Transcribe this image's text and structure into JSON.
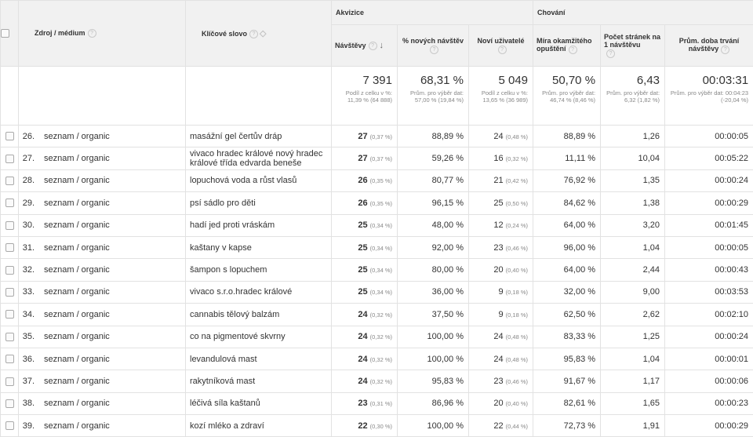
{
  "headers": {
    "source_medium": "Zdroj / médium",
    "keyword": "Klíčové slovo",
    "acquisition": "Akvizice",
    "behavior": "Chování",
    "visits": "Návštěvy",
    "new_visits_pct": "% nových návštěv",
    "new_users": "Noví uživatelé",
    "bounce_rate": "Míra okamžitého opuštění",
    "pages_per_visit": "Počet stránek na 1 návštěvu",
    "avg_duration": "Prům. doba trvání návštěvy",
    "help_glyph": "?"
  },
  "totals": {
    "visits": "7 391",
    "visits_sub": "Podíl z celku v %: 11,39 % (64 888)",
    "new_visits_pct": "68,31 %",
    "new_visits_pct_sub": "Prům. pro výběr dat: 57,00 % (19,84 %)",
    "new_users": "5 049",
    "new_users_sub": "Podíl z celku v %: 13,65 % (36 989)",
    "bounce_rate": "50,70 %",
    "bounce_rate_sub": "Prům. pro výběr dat: 46,74 % (8,46 %)",
    "pages_per_visit": "6,43",
    "pages_per_visit_sub": "Prům. pro výběr dat: 6,32 (1,82 %)",
    "avg_duration": "00:03:31",
    "avg_duration_sub": "Prům. pro výběr dat: 00:04:23 (-20,04 %)"
  },
  "rows": [
    {
      "idx": "26.",
      "source": "seznam / organic",
      "keyword": "masážní gel čertův dráp",
      "visits": "27",
      "visits_pct": "(0,37 %)",
      "new_visits_pct": "88,89 %",
      "new_users": "24",
      "new_users_pct": "(0,48 %)",
      "bounce": "88,89 %",
      "pages": "1,26",
      "duration": "00:00:05"
    },
    {
      "idx": "27.",
      "source": "seznam / organic",
      "keyword": "vivaco hradec králové nový hradec králové třída edvarda beneše",
      "visits": "27",
      "visits_pct": "(0,37 %)",
      "new_visits_pct": "59,26 %",
      "new_users": "16",
      "new_users_pct": "(0,32 %)",
      "bounce": "11,11 %",
      "pages": "10,04",
      "duration": "00:05:22"
    },
    {
      "idx": "28.",
      "source": "seznam / organic",
      "keyword": "lopuchová voda a růst vlasů",
      "visits": "26",
      "visits_pct": "(0,35 %)",
      "new_visits_pct": "80,77 %",
      "new_users": "21",
      "new_users_pct": "(0,42 %)",
      "bounce": "76,92 %",
      "pages": "1,35",
      "duration": "00:00:24"
    },
    {
      "idx": "29.",
      "source": "seznam / organic",
      "keyword": "psí sádlo pro děti",
      "visits": "26",
      "visits_pct": "(0,35 %)",
      "new_visits_pct": "96,15 %",
      "new_users": "25",
      "new_users_pct": "(0,50 %)",
      "bounce": "84,62 %",
      "pages": "1,38",
      "duration": "00:00:29"
    },
    {
      "idx": "30.",
      "source": "seznam / organic",
      "keyword": "hadí jed proti vráskám",
      "visits": "25",
      "visits_pct": "(0,34 %)",
      "new_visits_pct": "48,00 %",
      "new_users": "12",
      "new_users_pct": "(0,24 %)",
      "bounce": "64,00 %",
      "pages": "3,20",
      "duration": "00:01:45"
    },
    {
      "idx": "31.",
      "source": "seznam / organic",
      "keyword": "kaštany v kapse",
      "visits": "25",
      "visits_pct": "(0,34 %)",
      "new_visits_pct": "92,00 %",
      "new_users": "23",
      "new_users_pct": "(0,46 %)",
      "bounce": "96,00 %",
      "pages": "1,04",
      "duration": "00:00:05"
    },
    {
      "idx": "32.",
      "source": "seznam / organic",
      "keyword": "šampon s lopuchem",
      "visits": "25",
      "visits_pct": "(0,34 %)",
      "new_visits_pct": "80,00 %",
      "new_users": "20",
      "new_users_pct": "(0,40 %)",
      "bounce": "64,00 %",
      "pages": "2,44",
      "duration": "00:00:43"
    },
    {
      "idx": "33.",
      "source": "seznam / organic",
      "keyword": "vivaco s.r.o.hradec králové",
      "visits": "25",
      "visits_pct": "(0,34 %)",
      "new_visits_pct": "36,00 %",
      "new_users": "9",
      "new_users_pct": "(0,18 %)",
      "bounce": "32,00 %",
      "pages": "9,00",
      "duration": "00:03:53"
    },
    {
      "idx": "34.",
      "source": "seznam / organic",
      "keyword": "cannabis tělový balzám",
      "visits": "24",
      "visits_pct": "(0,32 %)",
      "new_visits_pct": "37,50 %",
      "new_users": "9",
      "new_users_pct": "(0,18 %)",
      "bounce": "62,50 %",
      "pages": "2,62",
      "duration": "00:02:10"
    },
    {
      "idx": "35.",
      "source": "seznam / organic",
      "keyword": "co na pigmentové skvrny",
      "visits": "24",
      "visits_pct": "(0,32 %)",
      "new_visits_pct": "100,00 %",
      "new_users": "24",
      "new_users_pct": "(0,48 %)",
      "bounce": "83,33 %",
      "pages": "1,25",
      "duration": "00:00:24"
    },
    {
      "idx": "36.",
      "source": "seznam / organic",
      "keyword": "levandulová mast",
      "visits": "24",
      "visits_pct": "(0,32 %)",
      "new_visits_pct": "100,00 %",
      "new_users": "24",
      "new_users_pct": "(0,48 %)",
      "bounce": "95,83 %",
      "pages": "1,04",
      "duration": "00:00:01"
    },
    {
      "idx": "37.",
      "source": "seznam / organic",
      "keyword": "rakytníková mast",
      "visits": "24",
      "visits_pct": "(0,32 %)",
      "new_visits_pct": "95,83 %",
      "new_users": "23",
      "new_users_pct": "(0,46 %)",
      "bounce": "91,67 %",
      "pages": "1,17",
      "duration": "00:00:06"
    },
    {
      "idx": "38.",
      "source": "seznam / organic",
      "keyword": "léčivá síla kaštanů",
      "visits": "23",
      "visits_pct": "(0,31 %)",
      "new_visits_pct": "86,96 %",
      "new_users": "20",
      "new_users_pct": "(0,40 %)",
      "bounce": "82,61 %",
      "pages": "1,65",
      "duration": "00:00:23"
    },
    {
      "idx": "39.",
      "source": "seznam / organic",
      "keyword": "kozí mléko a zdraví",
      "visits": "22",
      "visits_pct": "(0,30 %)",
      "new_visits_pct": "100,00 %",
      "new_users": "22",
      "new_users_pct": "(0,44 %)",
      "bounce": "72,73 %",
      "pages": "1,91",
      "duration": "00:00:29"
    }
  ]
}
